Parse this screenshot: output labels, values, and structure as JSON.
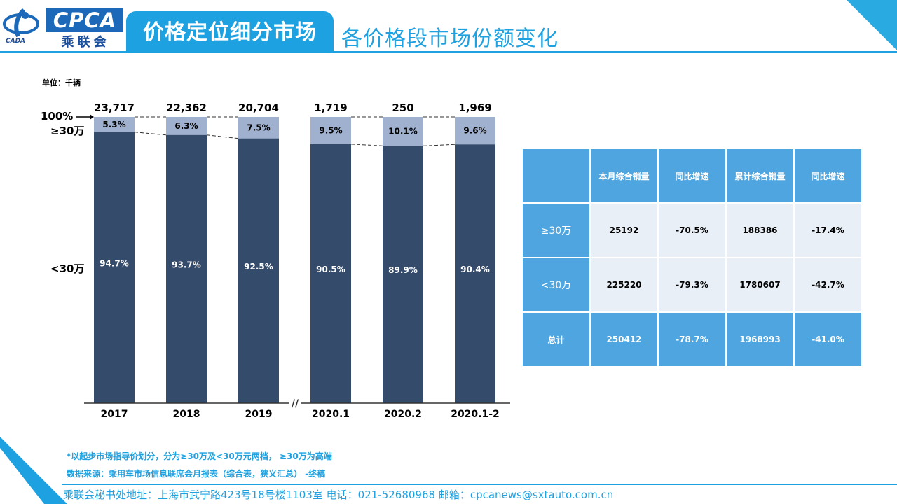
{
  "header": {
    "logo_text": "CPCA",
    "logo_cn": "乘联会",
    "logo_small": "CADA",
    "title": "价格定位细分市场",
    "subtitle": "各价格段市场份额变化"
  },
  "chart_data": {
    "type": "bar",
    "stacked": "percent",
    "unit_label": "单位：千辆",
    "categories": [
      "2017",
      "2018",
      "2019",
      "2020.1",
      "2020.2",
      "2020.1-2"
    ],
    "totals": [
      "23,717",
      "22,362",
      "20,704",
      "1,719",
      "250",
      "1,969"
    ],
    "series": [
      {
        "name": "<30万",
        "values": [
          94.7,
          93.7,
          92.5,
          90.5,
          89.9,
          90.4
        ],
        "labels": [
          "94.7%",
          "93.7%",
          "92.5%",
          "90.5%",
          "89.9%",
          "90.4%"
        ],
        "color": "#344b6b"
      },
      {
        "name": "≥30万",
        "values": [
          5.3,
          6.3,
          7.5,
          9.5,
          10.1,
          9.6
        ],
        "labels": [
          "5.3%",
          "6.3%",
          "7.5%",
          "9.5%",
          "10.1%",
          "9.6%"
        ],
        "color": "#9fb1cf"
      }
    ],
    "y_labels": {
      "top": "100%",
      "upper": "≥30万",
      "lower": "<30万"
    },
    "axis_break": "//",
    "ylim": [
      0,
      100
    ]
  },
  "table": {
    "headers": [
      "",
      "本月综合销量",
      "同比增速",
      "累计综合销量",
      "同比增速"
    ],
    "rows": [
      {
        "label": "≥30万",
        "cells": [
          "25192",
          "-70.5%",
          "188386",
          "-17.4%"
        ]
      },
      {
        "label": "<30万",
        "cells": [
          "225220",
          "-79.3%",
          "1780607",
          "-42.7%"
        ]
      },
      {
        "label": "总计",
        "cells": [
          "250412",
          "-78.7%",
          "1968993",
          "-41.0%"
        ]
      }
    ]
  },
  "notes": {
    "note1": "*以起步市场指导价划分，分为≥30万及<30万元两档， ≥30万为高端",
    "note2": "数据来源：乘用车市场信息联席会月报表（综合表，狭义汇总） -终稿"
  },
  "footer": {
    "text": "乘联会秘书处地址：上海市武宁路423号18号楼1103室  电话：021-52680968   邮箱：cpcanews@sxtauto.com.cn"
  }
}
